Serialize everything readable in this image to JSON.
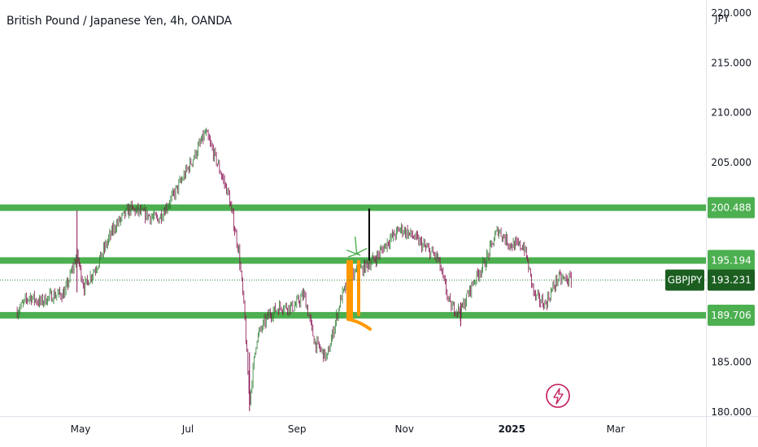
{
  "header": {
    "title": "British Pound / Japanese Yen, 4h, OANDA",
    "currency_button": "JPY"
  },
  "colors": {
    "level_line": "#4caf50",
    "last_price_tag": "#1b5e20",
    "candle_up": "#2e7d32",
    "candle_down": "#880e4f",
    "annotation_orange": "#ff9800",
    "annotation_green": "#4caf50",
    "flash_icon": "#c2185b"
  },
  "icons": {
    "flash": "flash-circle-icon"
  },
  "chart_data": {
    "type": "candlestick",
    "symbol_label": "GBPJPY",
    "last_price": 193.231,
    "last_price_label": "193.231",
    "ylim": [
      179.6,
      221.3
    ],
    "y_ticks": [
      180,
      185,
      205,
      210,
      215,
      220
    ],
    "y_tick_labels": [
      "180.000",
      "185.000",
      "205.000",
      "210.000",
      "215.000",
      "220.000"
    ],
    "x_ticks": [
      {
        "date": "2024-05-01",
        "label": "May",
        "bold": false
      },
      {
        "date": "2024-07-01",
        "label": "Jul",
        "bold": false
      },
      {
        "date": "2024-09-01",
        "label": "Sep",
        "bold": false
      },
      {
        "date": "2024-11-01",
        "label": "Nov",
        "bold": false
      },
      {
        "date": "2025-01-01",
        "label": "2025",
        "bold": true
      },
      {
        "date": "2025-03-01",
        "label": "Mar",
        "bold": false
      }
    ],
    "horizontal_levels": [
      {
        "value": 200.488,
        "label": "200.488"
      },
      {
        "value": 195.194,
        "label": "195.194"
      },
      {
        "value": 189.706,
        "label": "189.706"
      }
    ],
    "price_path": [
      [
        "2024-03-26",
        190.1
      ],
      [
        "2024-04-02",
        191.6
      ],
      [
        "2024-04-08",
        191.0
      ],
      [
        "2024-04-15",
        191.7
      ],
      [
        "2024-04-22",
        191.9
      ],
      [
        "2024-04-29",
        195.8
      ],
      [
        "2024-05-03",
        192.5
      ],
      [
        "2024-05-10",
        194.6
      ],
      [
        "2024-05-20",
        198.5
      ],
      [
        "2024-05-29",
        200.4
      ],
      [
        "2024-06-06",
        199.9
      ],
      [
        "2024-06-14",
        199.3
      ],
      [
        "2024-06-21",
        201.2
      ],
      [
        "2024-06-28",
        203.4
      ],
      [
        "2024-07-05",
        205.8
      ],
      [
        "2024-07-11",
        208.0
      ],
      [
        "2024-07-17",
        205.3
      ],
      [
        "2024-07-24",
        201.8
      ],
      [
        "2024-07-30",
        196.0
      ],
      [
        "2024-08-02",
        190.2
      ],
      [
        "2024-08-05",
        181.0
      ],
      [
        "2024-08-09",
        187.4
      ],
      [
        "2024-08-16",
        189.8
      ],
      [
        "2024-08-23",
        190.6
      ],
      [
        "2024-08-30",
        190.5
      ],
      [
        "2024-09-05",
        191.8
      ],
      [
        "2024-09-11",
        187.0
      ],
      [
        "2024-09-18",
        185.4
      ],
      [
        "2024-09-26",
        191.5
      ],
      [
        "2024-10-02",
        193.6
      ],
      [
        "2024-10-09",
        194.5
      ],
      [
        "2024-10-16",
        195.5
      ],
      [
        "2024-10-23",
        197.2
      ],
      [
        "2024-10-30",
        198.4
      ],
      [
        "2024-11-06",
        197.6
      ],
      [
        "2024-11-12",
        196.6
      ],
      [
        "2024-11-20",
        195.4
      ],
      [
        "2024-11-27",
        190.6
      ],
      [
        "2024-12-03",
        190.1
      ],
      [
        "2024-12-10",
        193.0
      ],
      [
        "2024-12-17",
        195.1
      ],
      [
        "2024-12-24",
        198.3
      ],
      [
        "2024-12-31",
        196.8
      ],
      [
        "2025-01-08",
        196.6
      ],
      [
        "2025-01-14",
        191.6
      ],
      [
        "2025-01-20",
        190.8
      ],
      [
        "2025-01-27",
        193.4
      ],
      [
        "2025-02-04",
        193.231
      ]
    ],
    "annotations": [
      {
        "type": "vertical-line",
        "date": "2024-10-12",
        "from": 195.2,
        "to": 200.4
      },
      {
        "type": "orange-bracket",
        "date_start": "2024-09-30",
        "date_end": "2024-10-06",
        "from": 195.1,
        "to": 189.3
      },
      {
        "type": "green-tick",
        "date": "2024-10-04",
        "value": 195.9
      }
    ]
  }
}
